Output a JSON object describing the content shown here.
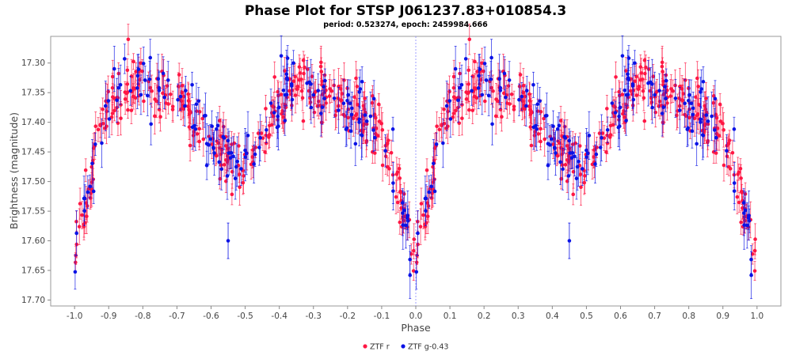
{
  "chart_data": {
    "type": "scatter",
    "title": "Phase Plot for STSP J061237.83+010854.3",
    "subtitle": "period: 0.523274, epoch: 2459984.666",
    "xlabel": "Phase",
    "ylabel": "Brightness (magnitude)",
    "xlim": [
      -1.07,
      1.07
    ],
    "ylim": [
      17.71,
      17.255
    ],
    "y_inverted": true,
    "x_ticks": [
      -1.0,
      -0.9,
      -0.8,
      -0.7,
      -0.6,
      -0.5,
      -0.4,
      -0.3,
      -0.2,
      -0.1,
      0.0,
      0.1,
      0.2,
      0.3,
      0.4,
      0.5,
      0.6,
      0.7,
      0.8,
      0.9,
      1.0
    ],
    "x_tick_labels": [
      "-1.0",
      "-0.9",
      "-0.8",
      "-0.7",
      "-0.6",
      "-0.5",
      "-0.4",
      "-0.3",
      "-0.2",
      "-0.1",
      "0.0",
      "0.1",
      "0.2",
      "0.3",
      "0.4",
      "0.5",
      "0.6",
      "0.7",
      "0.8",
      "0.9",
      "1.0"
    ],
    "y_ticks": [
      17.3,
      17.35,
      17.4,
      17.45,
      17.5,
      17.55,
      17.6,
      17.65,
      17.7
    ],
    "y_tick_labels": [
      "17.30",
      "17.35",
      "17.40",
      "17.45",
      "17.50",
      "17.55",
      "17.60",
      "17.65",
      "17.70"
    ],
    "grid": false,
    "reference_line_x": 0.0,
    "legend_position": "bottom",
    "series": [
      {
        "name": "ZTF r",
        "color": "#ff1744",
        "marker": "circle",
        "error_bars": true,
        "light_curve_shape": {
          "phase": [
            0.0,
            0.03,
            0.06,
            0.1,
            0.15,
            0.2,
            0.25,
            0.3,
            0.35,
            0.4,
            0.45,
            0.5,
            0.55,
            0.6,
            0.65,
            0.7,
            0.75,
            0.8,
            0.85,
            0.9,
            0.95,
            1.0
          ],
          "magnitude": [
            17.635,
            17.54,
            17.45,
            17.37,
            17.34,
            17.33,
            17.34,
            17.36,
            17.39,
            17.43,
            17.46,
            17.47,
            17.42,
            17.36,
            17.34,
            17.34,
            17.36,
            17.38,
            17.39,
            17.42,
            17.52,
            17.63
          ]
        },
        "scatter_sigma": 0.025,
        "error_bar_halfwidth": 0.022
      },
      {
        "name": "ZTF g-0.43",
        "color": "#0a12e6",
        "marker": "circle",
        "error_bars": true,
        "light_curve_shape": {
          "phase": [
            0.0,
            0.03,
            0.06,
            0.1,
            0.15,
            0.2,
            0.25,
            0.3,
            0.35,
            0.4,
            0.45,
            0.5,
            0.55,
            0.6,
            0.65,
            0.7,
            0.75,
            0.8,
            0.85,
            0.9,
            0.95,
            1.0
          ],
          "magnitude": [
            17.635,
            17.54,
            17.45,
            17.37,
            17.34,
            17.33,
            17.34,
            17.36,
            17.39,
            17.43,
            17.46,
            17.47,
            17.42,
            17.36,
            17.34,
            17.34,
            17.36,
            17.38,
            17.39,
            17.42,
            17.52,
            17.63
          ]
        },
        "scatter_sigma": 0.027,
        "error_bar_halfwidth": 0.03,
        "outliers": [
          {
            "x": -0.55,
            "y": 17.6
          },
          {
            "x": 0.45,
            "y": 17.6
          }
        ]
      }
    ]
  }
}
